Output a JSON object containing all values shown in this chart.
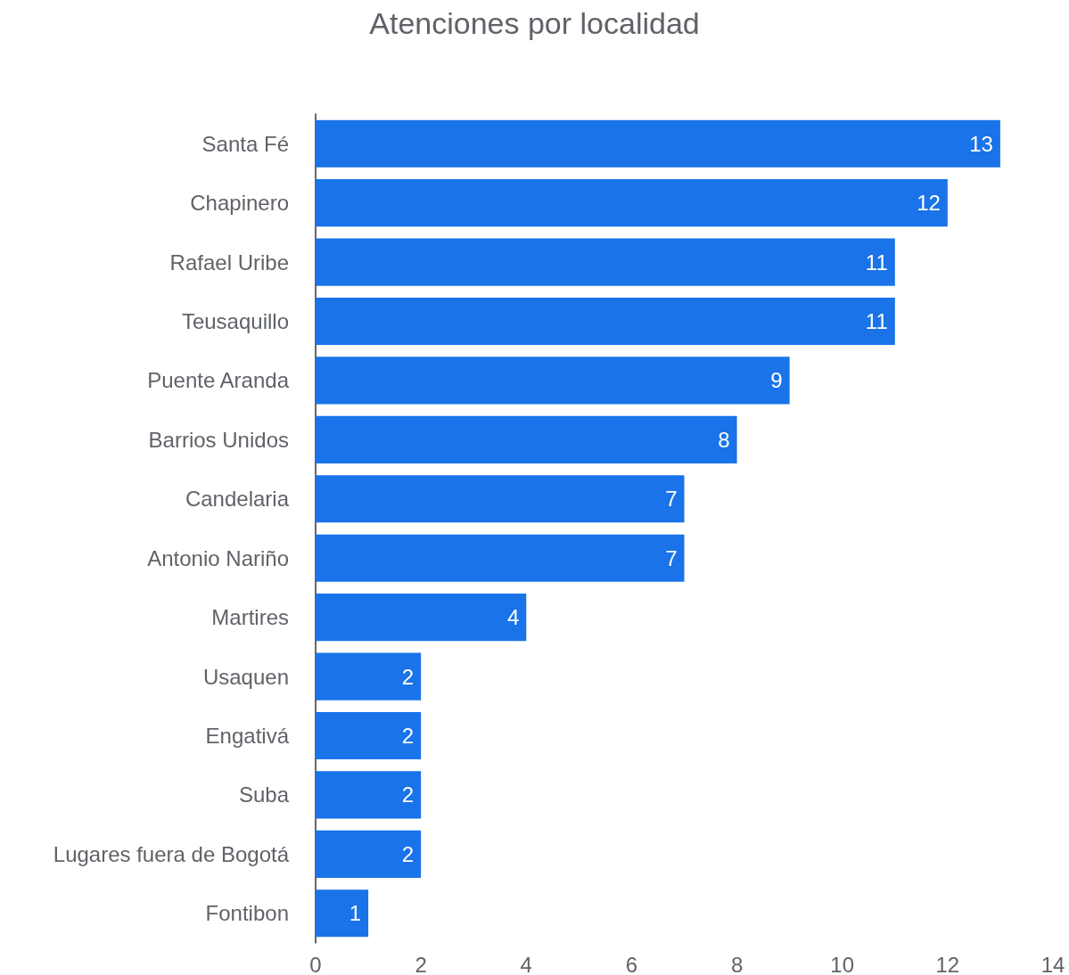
{
  "chart_data": {
    "type": "bar",
    "orientation": "horizontal",
    "title": "Atenciones por localidad",
    "categories": [
      "Santa Fé",
      "Chapinero",
      "Rafael Uribe",
      "Teusaquillo",
      "Puente Aranda",
      "Barrios Unidos",
      "Candelaria",
      "Antonio Nariño",
      "Martires",
      "Usaquen",
      "Engativá",
      "Suba",
      "Lugares fuera de Bogotá",
      "Fontibon"
    ],
    "values": [
      13,
      12,
      11,
      11,
      9,
      8,
      7,
      7,
      4,
      2,
      2,
      2,
      2,
      1
    ],
    "color": "#1a73e8",
    "xlim": [
      0,
      14
    ],
    "xticks": [
      0,
      2,
      4,
      6,
      8,
      10,
      12,
      14
    ],
    "grid": false,
    "data_labels": true
  }
}
